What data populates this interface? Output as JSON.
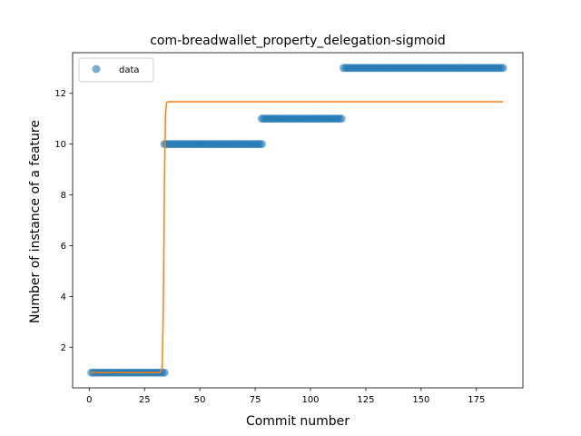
{
  "chart_data": {
    "type": "scatter",
    "title": "com-breadwallet_property_delegation-sigmoid",
    "xlabel": "Commit number",
    "ylabel": "Number of instance of a feature",
    "xlim": [
      -7.5,
      196
    ],
    "ylim": [
      0.4,
      13.6
    ],
    "xticks": [
      0,
      25,
      50,
      75,
      100,
      125,
      150,
      175
    ],
    "yticks": [
      2,
      4,
      6,
      8,
      10,
      12
    ],
    "legend": {
      "position": "top-left",
      "entries": [
        "data"
      ]
    },
    "colors": {
      "data": "#1f77b4",
      "fit": "#ff7f0e"
    },
    "series": [
      {
        "name": "data",
        "type": "scatter",
        "segments": [
          {
            "x_from": 1,
            "x_to": 34,
            "y": 1
          },
          {
            "x_from": 34,
            "x_to": 78,
            "y": 10
          },
          {
            "x_from": 78,
            "x_to": 114,
            "y": 11
          },
          {
            "x_from": 115,
            "x_to": 187,
            "y": 13
          }
        ]
      },
      {
        "type": "line",
        "x": [
          1,
          32,
          33,
          33.5,
          34,
          34.5,
          35,
          36,
          187
        ],
        "y": [
          1,
          1,
          1.2,
          3.5,
          8.5,
          11.2,
          11.65,
          11.67,
          11.67
        ]
      }
    ]
  }
}
